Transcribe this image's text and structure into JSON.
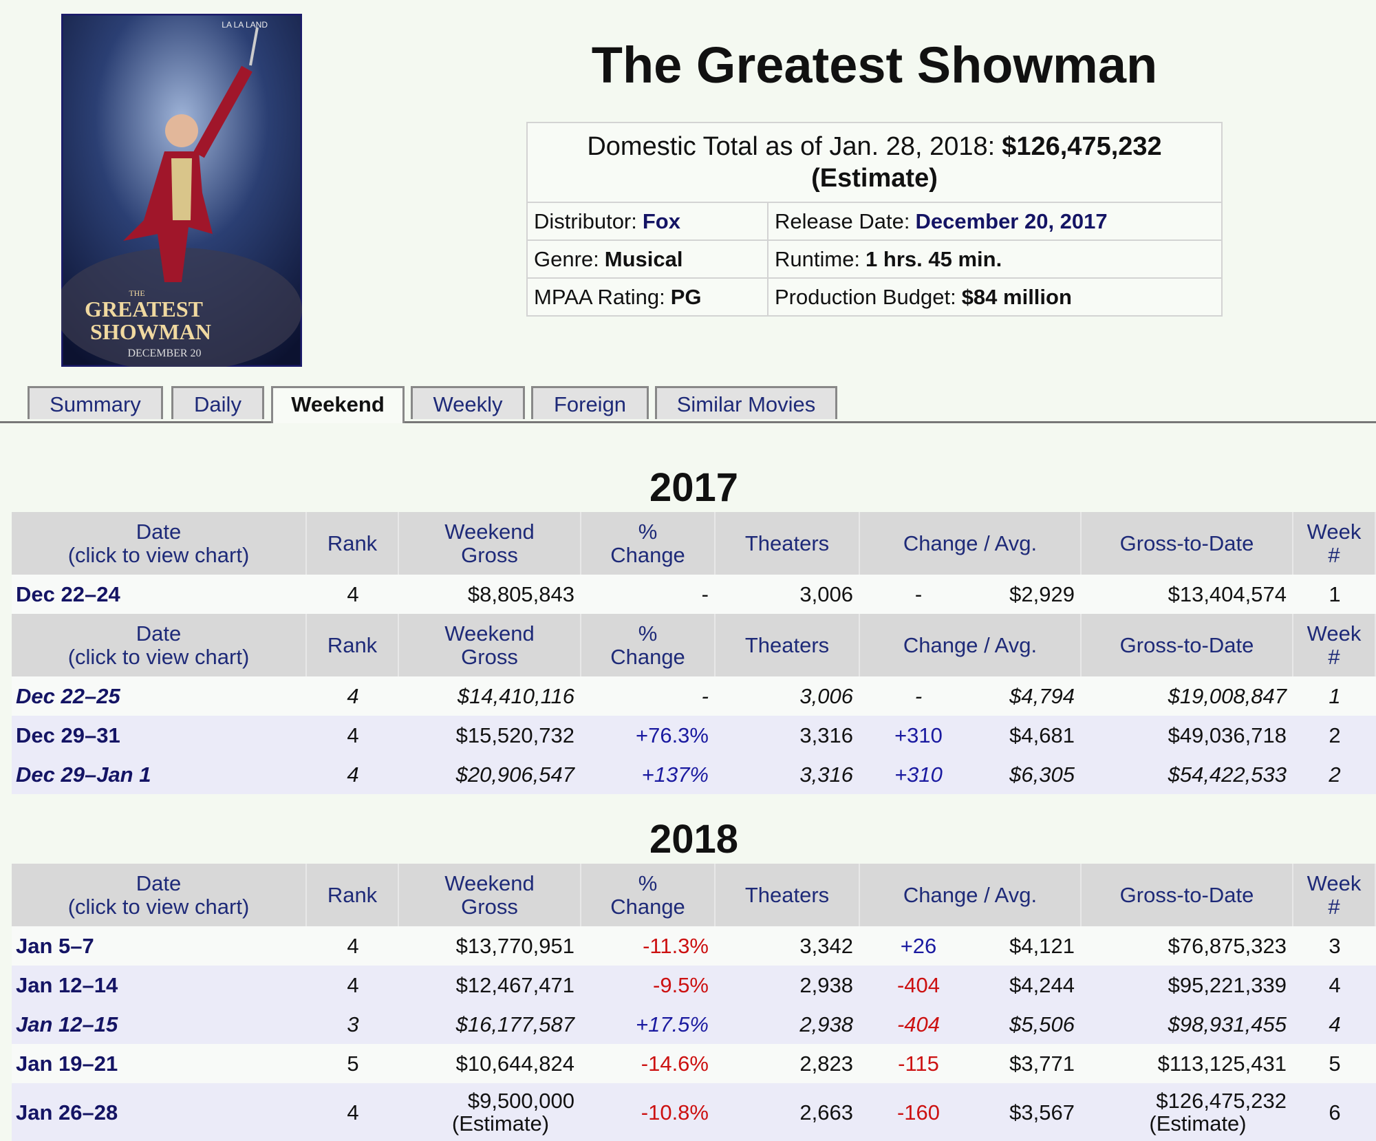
{
  "title": "The Greatest Showman",
  "poster": {
    "texts": [
      "LA LA LAND",
      "THE",
      "GREATEST",
      "SHOWMAN",
      "DECEMBER 20"
    ]
  },
  "summary": {
    "domestic": {
      "label": "Domestic Total as of Jan. 28, 2018:",
      "value": "$126,475,232",
      "note": "(Estimate)"
    },
    "rows": [
      [
        {
          "label": "Distributor:",
          "value": "Fox",
          "link": true
        },
        {
          "label": "Release Date:",
          "value": "December 20, 2017",
          "link": true
        }
      ],
      [
        {
          "label": "Genre:",
          "value": "Musical",
          "link": false
        },
        {
          "label": "Runtime:",
          "value": "1 hrs. 45 min.",
          "link": false
        }
      ],
      [
        {
          "label": "MPAA Rating:",
          "value": "PG",
          "link": false
        },
        {
          "label": "Production Budget:",
          "value": "$84 million",
          "link": false
        }
      ]
    ]
  },
  "tabs": [
    "Summary",
    "Daily",
    "Weekend",
    "Weekly",
    "Foreign",
    "Similar Movies"
  ],
  "active_tab": "Weekend",
  "header": [
    [
      "Date",
      "(click to view chart)"
    ],
    [
      "Rank"
    ],
    [
      "Weekend",
      "Gross"
    ],
    [
      "%",
      "Change"
    ],
    [
      "Theaters"
    ],
    [
      "Change / Avg."
    ],
    [
      "Gross-to-Date"
    ],
    [
      "Week",
      "#"
    ]
  ],
  "sections": [
    {
      "year": "2017",
      "blocks": [
        {
          "rows": [
            {
              "italic": false,
              "cells": [
                "Dec 22–24",
                "4",
                "$8,805,843",
                "-",
                "3,006",
                "-",
                "$2,929",
                "$13,404,574",
                "1"
              ]
            }
          ]
        },
        {
          "rows": [
            {
              "italic": true,
              "cells": [
                "Dec 22–25",
                "4",
                "$14,410,116",
                "-",
                "3,006",
                "-",
                "$4,794",
                "$19,008,847",
                "1"
              ]
            },
            {
              "italic": false,
              "cells": [
                "Dec 29–31",
                "4",
                "$15,520,732",
                "+76.3%",
                "3,316",
                "+310",
                "$4,681",
                "$49,036,718",
                "2"
              ]
            },
            {
              "italic": true,
              "cells": [
                "Dec 29–Jan 1",
                "4",
                "$20,906,547",
                "+137%",
                "3,316",
                "+310",
                "$6,305",
                "$54,422,533",
                "2"
              ]
            }
          ]
        }
      ]
    },
    {
      "year": "2018",
      "blocks": [
        {
          "rows": [
            {
              "italic": false,
              "cells": [
                "Jan 5–7",
                "4",
                "$13,770,951",
                "-11.3%",
                "3,342",
                "+26",
                "$4,121",
                "$76,875,323",
                "3"
              ]
            },
            {
              "italic": false,
              "cells": [
                "Jan 12–14",
                "4",
                "$12,467,471",
                "-9.5%",
                "2,938",
                "-404",
                "$4,244",
                "$95,221,339",
                "4"
              ]
            },
            {
              "italic": true,
              "cells": [
                "Jan 12–15",
                "3",
                "$16,177,587",
                "+17.5%",
                "2,938",
                "-404",
                "$5,506",
                "$98,931,455",
                "4"
              ]
            },
            {
              "italic": false,
              "cells": [
                "Jan 19–21",
                "5",
                "$10,644,824",
                "-14.6%",
                "2,823",
                "-115",
                "$3,771",
                "$113,125,431",
                "5"
              ]
            },
            {
              "italic": false,
              "cells": [
                "Jan 26–28",
                "4",
                [
                  "$9,500,000",
                  "(Estimate)"
                ],
                "-10.8%",
                "2,663",
                "-160",
                "$3,567",
                [
                  "$126,475,232",
                  "(Estimate)"
                ],
                "6"
              ]
            }
          ]
        }
      ]
    }
  ]
}
